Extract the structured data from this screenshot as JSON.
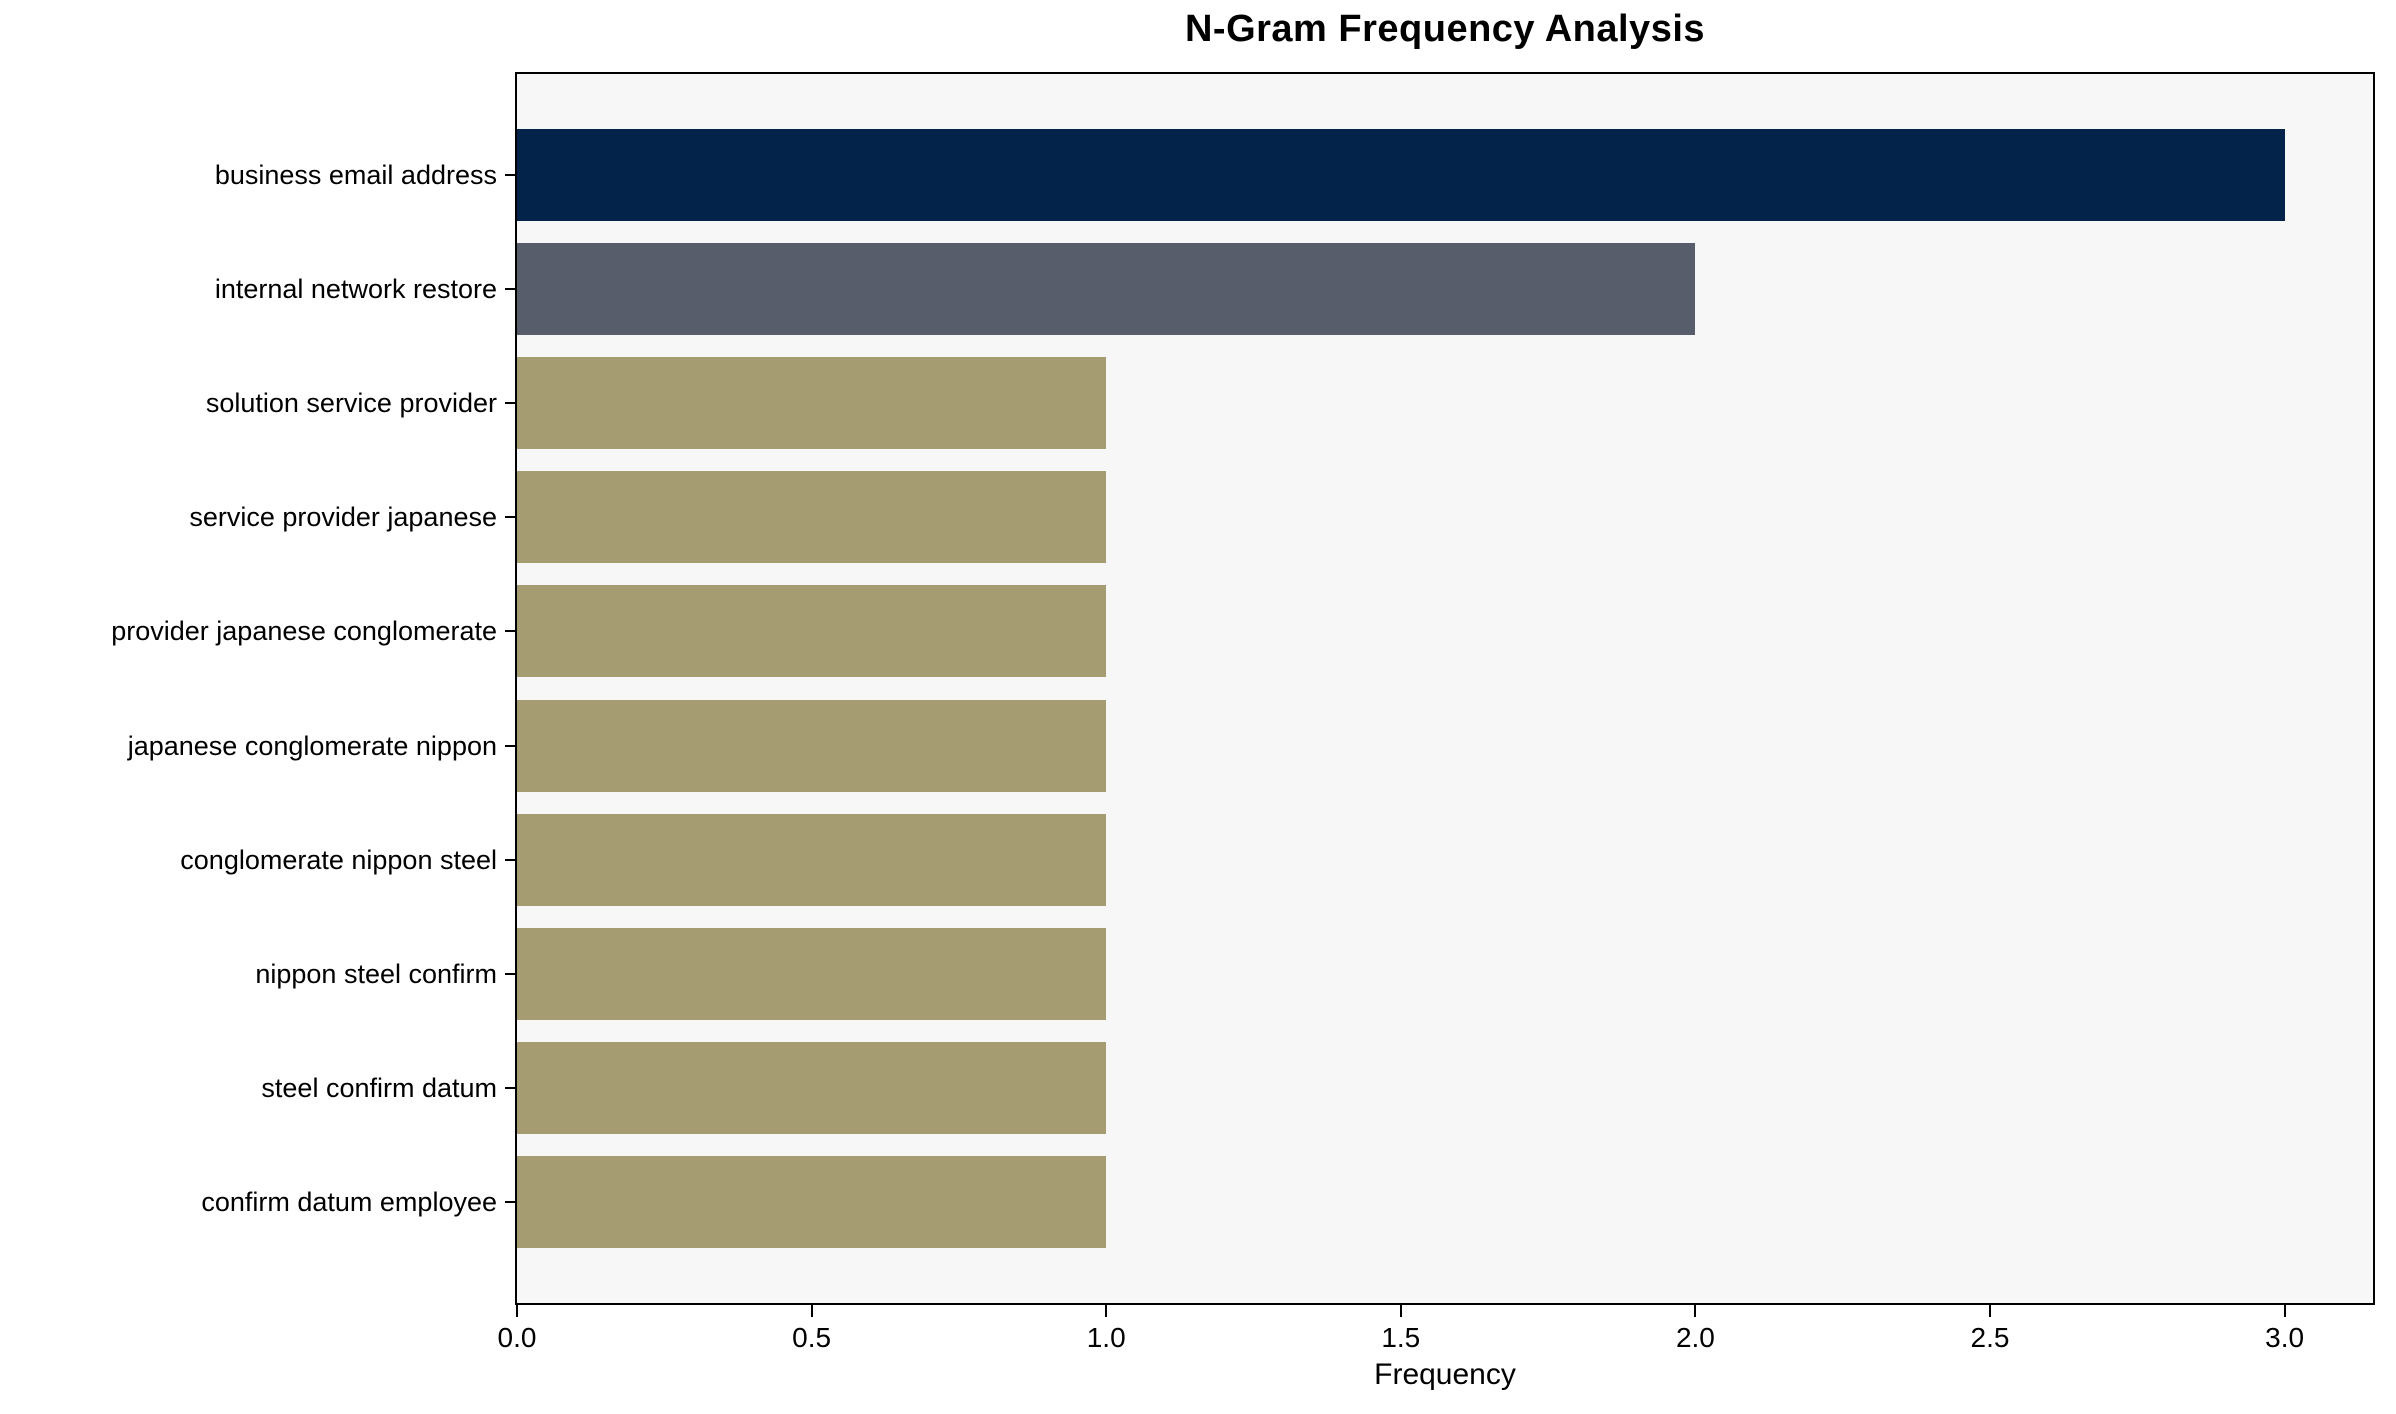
{
  "chart_data": {
    "type": "bar",
    "orientation": "horizontal",
    "title": "N-Gram Frequency Analysis",
    "xlabel": "Frequency",
    "ylabel": "",
    "categories": [
      "business email address",
      "internal network restore",
      "solution service provider",
      "service provider japanese",
      "provider japanese conglomerate",
      "japanese conglomerate nippon",
      "conglomerate nippon steel",
      "nippon steel confirm",
      "steel confirm datum",
      "confirm datum employee"
    ],
    "values": [
      3,
      2,
      1,
      1,
      1,
      1,
      1,
      1,
      1,
      1
    ],
    "bar_colors": [
      "#04234b",
      "#585d6c",
      "#a59c72",
      "#a59c72",
      "#a59c72",
      "#a59c72",
      "#a59c72",
      "#a59c72",
      "#a59c72",
      "#a59c72"
    ],
    "xlim": [
      0,
      3.15
    ],
    "xticks": [
      {
        "value": 0.0,
        "label": "0.0"
      },
      {
        "value": 0.5,
        "label": "0.5"
      },
      {
        "value": 1.0,
        "label": "1.0"
      },
      {
        "value": 1.5,
        "label": "1.5"
      },
      {
        "value": 2.0,
        "label": "2.0"
      },
      {
        "value": 2.5,
        "label": "2.5"
      },
      {
        "value": 3.0,
        "label": "3.0"
      }
    ],
    "grid": false,
    "legend": "none",
    "plot_background": "#f7f7f7",
    "axis_color": "#000000"
  }
}
